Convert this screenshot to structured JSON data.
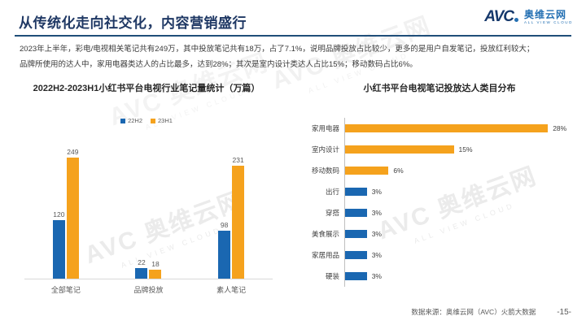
{
  "header": {
    "title": "从传统化走向社交化，内容营销盛行",
    "logo": {
      "acronym": "AVC",
      "name": "奥维云网",
      "tagline": "ALL VIEW CLOUD"
    }
  },
  "intro": {
    "line1": "2023年上半年，彩电/电视相关笔记共有249万，其中投放笔记共有18万，占了7.1%，说明品牌投放占比较少，更多的是用户自发笔记，投放红利较大；",
    "line2": "品牌所使用的达人中，家用电器类达人的占比最多，达到28%；其次是室内设计类达人占比15%；移动数码占比6%。"
  },
  "watermark": {
    "text": "AVC 奥维云网",
    "tagline": "ALL VIEW CLOUD"
  },
  "colors": {
    "blue": "#1a67b1",
    "orange": "#f5a21d",
    "navy": "#1f3864",
    "rule": "#1f4e79"
  },
  "chart_data": [
    {
      "type": "bar",
      "orientation": "vertical",
      "title": "2022H2-2023H1小红书平台电视行业笔记量统计（万篇）",
      "categories": [
        "全部笔记",
        "品牌投放",
        "素人笔记"
      ],
      "series": [
        {
          "name": "22H2",
          "color": "#1a67b1",
          "values": [
            120,
            22,
            98
          ]
        },
        {
          "name": "23H1",
          "color": "#f5a21d",
          "values": [
            249,
            18,
            231
          ]
        }
      ],
      "ylim": [
        0,
        260
      ],
      "grid": false,
      "legend_position": "top",
      "value_labels": true
    },
    {
      "type": "bar",
      "orientation": "horizontal",
      "title": "小红书平台电视笔记投放达人类目分布",
      "categories": [
        "家用电器",
        "室内设计",
        "移动数码",
        "出行",
        "穿搭",
        "美食展示",
        "家居用品",
        "硬装"
      ],
      "values": [
        28,
        15,
        6,
        3,
        3,
        3,
        3,
        3
      ],
      "value_labels": [
        "28%",
        "15%",
        "6%",
        "3%",
        "3%",
        "3%",
        "3%",
        "3%"
      ],
      "bar_colors": [
        "#f5a21d",
        "#f5a21d",
        "#f5a21d",
        "#1a67b1",
        "#1a67b1",
        "#1a67b1",
        "#1a67b1",
        "#1a67b1"
      ],
      "xlim": [
        0,
        30
      ],
      "grid": false
    }
  ],
  "footer": {
    "source": "数据来源：奥维云网（AVC）火箭大数据",
    "page": "-15-"
  }
}
